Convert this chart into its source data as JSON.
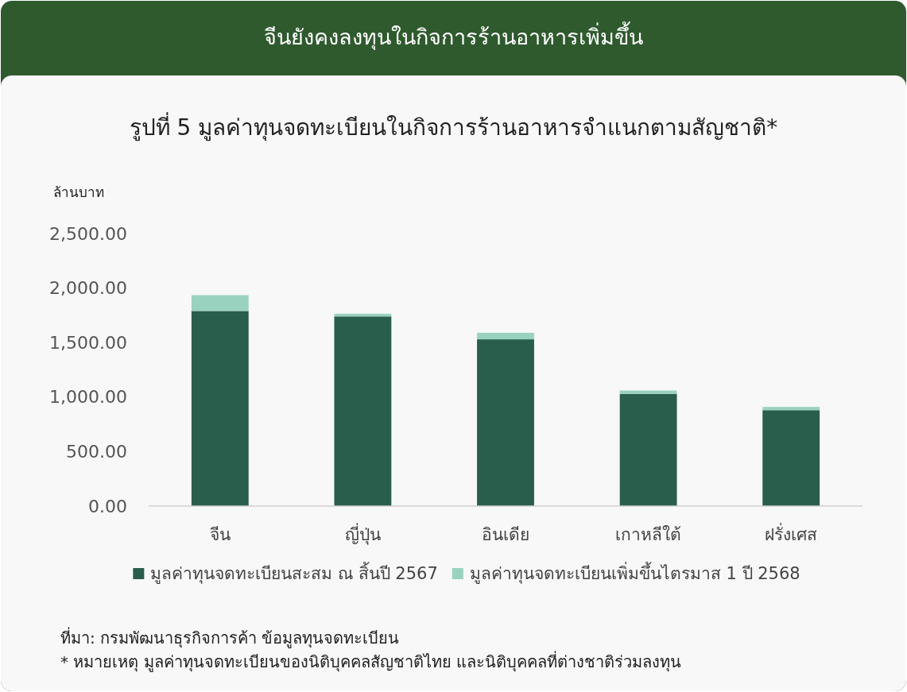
{
  "chart_data": {
    "type": "bar",
    "title": "จีนยังคงลงทุนในกิจการร้านอาหารเพิ่มขึ้น",
    "subtitle": "รูปที่  5 มูลค่าทุนจดทะเบียนในกิจการร้านอาหารจำแนกตามสัญชาติ*",
    "ylabel": "ล้านบาท",
    "categories": [
      "จีน",
      "ญี่ปุ่น",
      "อินเดีย",
      "เกาหลีใต้",
      "ฝรั่งเศส"
    ],
    "series": [
      {
        "name": "มูลค่าทุนจดทะเบียนสะสม ณ สิ้นปี 2567",
        "color": "#2a5e4c",
        "values": [
          1790,
          1740,
          1530,
          1030,
          880
        ]
      },
      {
        "name": "มูลค่าทุนจดทะเบียนเพิ่มขึ้นไตรมาส 1 ปี 2568",
        "color": "#99d3bf",
        "values": [
          145,
          25,
          60,
          30,
          30
        ]
      }
    ],
    "stacked": true,
    "legend": "bottom",
    "ylim": [
      0,
      2500
    ],
    "yticks": [
      {
        "value": 0,
        "label": "0.00"
      },
      {
        "value": 500,
        "label": "500.00"
      },
      {
        "value": 1000,
        "label": "1,000.00"
      },
      {
        "value": 1500,
        "label": "1,500.00"
      },
      {
        "value": 2000,
        "label": "2,000.00"
      },
      {
        "value": 2500,
        "label": "2,500.00"
      }
    ],
    "annotations": [
      "ที่มา:   กรมพัฒนาธุรกิจการค้า ข้อมูลทุนจดทะเบียน",
      "* หมายเหตุ มูลค่าทุนจดทะเบียนของนิติบุคคลสัญชาติไทย และนิติบุคคลที่ต่างชาติร่วมลงทุน"
    ]
  }
}
